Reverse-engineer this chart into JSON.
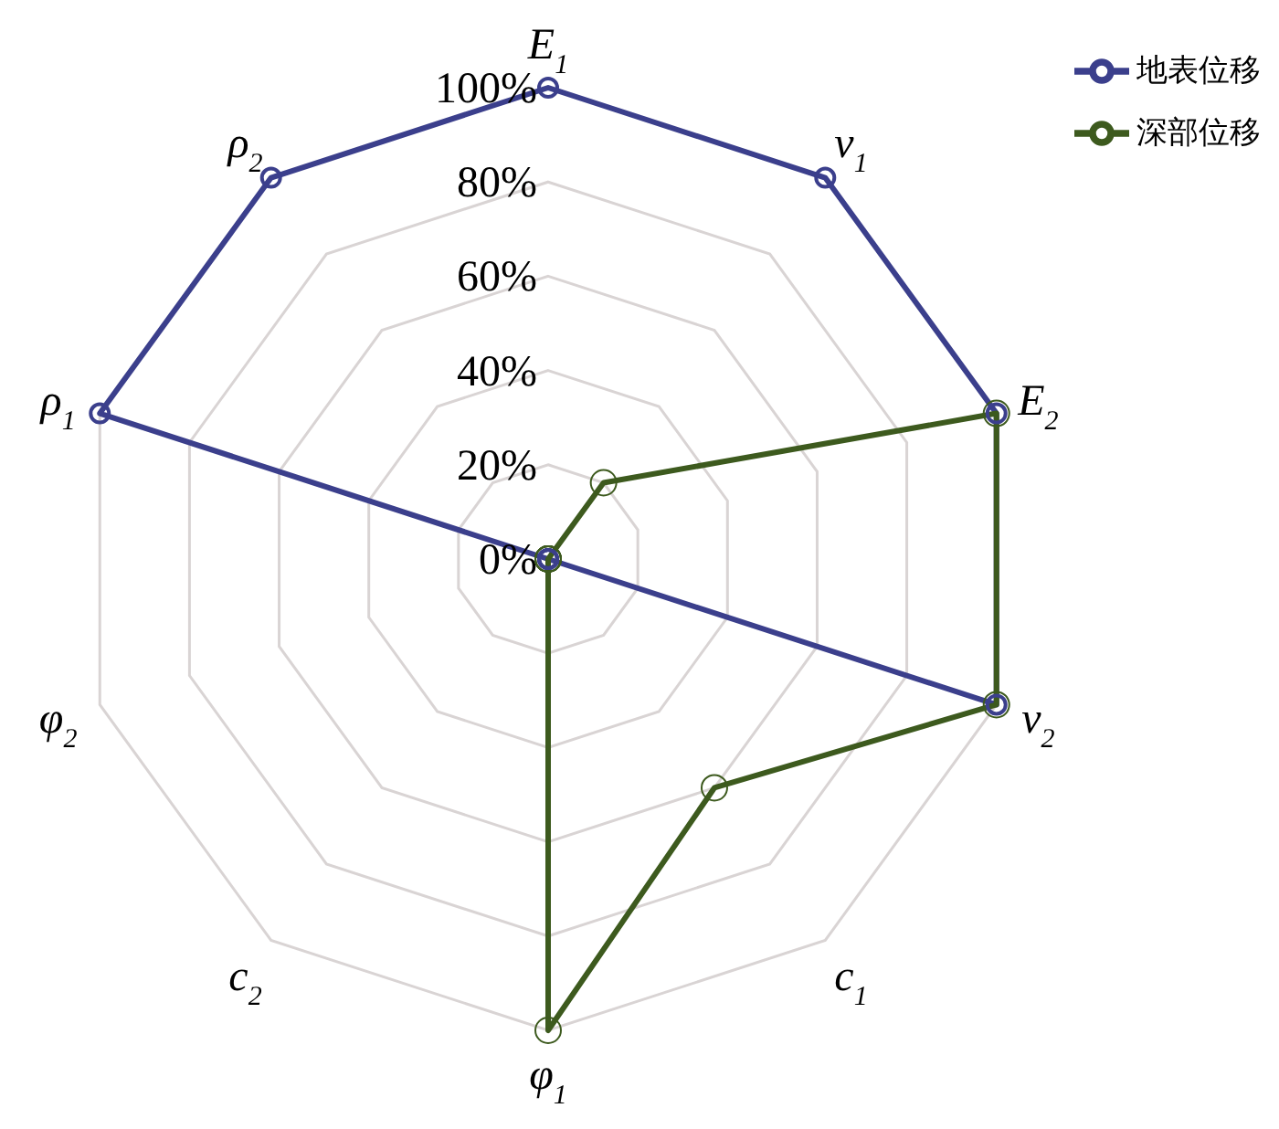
{
  "chart_data": {
    "type": "radar",
    "categories": [
      "E$_{1}$",
      "v$_{1}$",
      "E$_{2}$",
      "v$_{2}$",
      "c$_{1}$",
      "φ$_{1}$",
      "c$_{2}$",
      "φ$_{2}$",
      "ρ$_{1}$",
      "ρ$_{2}$"
    ],
    "series": [
      {
        "name": "地表位移",
        "color": "#3b3f8c",
        "values": [
          100,
          100,
          100,
          100,
          0,
          0,
          0,
          0,
          100,
          100
        ]
      },
      {
        "name": "深部位移",
        "color": "#3d5a1e",
        "values": [
          0,
          20,
          100,
          100,
          60,
          100,
          0,
          0,
          0,
          0
        ]
      }
    ],
    "ylim": [
      0,
      100
    ],
    "yticks": [
      {
        "value": 0,
        "label": "0%"
      },
      {
        "value": 20,
        "label": "20%"
      },
      {
        "value": 40,
        "label": "40%"
      },
      {
        "value": 60,
        "label": "60%"
      },
      {
        "value": 80,
        "label": "80%"
      },
      {
        "value": 100,
        "label": "100%"
      }
    ],
    "grid": true,
    "legend": "top right",
    "marker": "circle",
    "line_style": "solid"
  }
}
